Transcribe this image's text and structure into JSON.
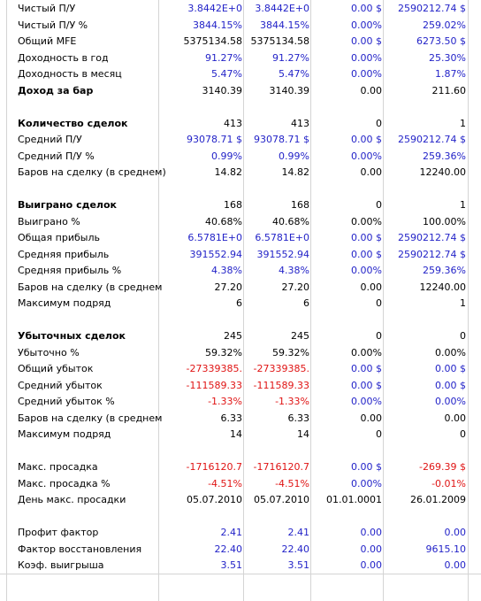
{
  "colors": {
    "blue": "#2323c8",
    "red": "#e01414",
    "black": "#000000",
    "grid": "#d4d4d4"
  },
  "rows": [
    {
      "label": "Чистый П/У",
      "bold": false,
      "values": [
        {
          "t": "3.8442E+0",
          "c": "blue"
        },
        {
          "t": "3.8442E+0",
          "c": "blue"
        },
        {
          "t": "0.00 $",
          "c": "blue"
        },
        {
          "t": "2590212.74 $",
          "c": "blue"
        }
      ]
    },
    {
      "label": "Чистый П/У %",
      "bold": false,
      "values": [
        {
          "t": "3844.15%",
          "c": "blue"
        },
        {
          "t": "3844.15%",
          "c": "blue"
        },
        {
          "t": "0.00%",
          "c": "blue"
        },
        {
          "t": "259.02%",
          "c": "blue"
        }
      ]
    },
    {
      "label": "Общий MFE",
      "bold": false,
      "values": [
        {
          "t": "5375134.58",
          "c": "black"
        },
        {
          "t": "5375134.58",
          "c": "black"
        },
        {
          "t": "0.00 $",
          "c": "blue"
        },
        {
          "t": "6273.50 $",
          "c": "blue"
        }
      ]
    },
    {
      "label": "Доходность в год",
      "bold": false,
      "values": [
        {
          "t": "91.27%",
          "c": "blue"
        },
        {
          "t": "91.27%",
          "c": "blue"
        },
        {
          "t": "0.00%",
          "c": "blue"
        },
        {
          "t": "25.30%",
          "c": "blue"
        }
      ]
    },
    {
      "label": "Доходность в месяц",
      "bold": false,
      "values": [
        {
          "t": "5.47%",
          "c": "blue"
        },
        {
          "t": "5.47%",
          "c": "blue"
        },
        {
          "t": "0.00%",
          "c": "blue"
        },
        {
          "t": "1.87%",
          "c": "blue"
        }
      ]
    },
    {
      "label": "Доход за бар",
      "bold": true,
      "values": [
        {
          "t": "3140.39",
          "c": "black"
        },
        {
          "t": "3140.39",
          "c": "black"
        },
        {
          "t": "0.00",
          "c": "black"
        },
        {
          "t": "211.60",
          "c": "black"
        }
      ]
    },
    null,
    {
      "label": "Количество сделок",
      "bold": true,
      "values": [
        {
          "t": "413",
          "c": "black"
        },
        {
          "t": "413",
          "c": "black"
        },
        {
          "t": "0",
          "c": "black"
        },
        {
          "t": "1",
          "c": "black"
        }
      ]
    },
    {
      "label": "Средний П/У",
      "bold": false,
      "values": [
        {
          "t": "93078.71 $",
          "c": "blue"
        },
        {
          "t": "93078.71 $",
          "c": "blue"
        },
        {
          "t": "0.00 $",
          "c": "blue"
        },
        {
          "t": "2590212.74 $",
          "c": "blue"
        }
      ]
    },
    {
      "label": "Средний П/У %",
      "bold": false,
      "values": [
        {
          "t": "0.99%",
          "c": "blue"
        },
        {
          "t": "0.99%",
          "c": "blue"
        },
        {
          "t": "0.00%",
          "c": "blue"
        },
        {
          "t": "259.36%",
          "c": "blue"
        }
      ]
    },
    {
      "label": "Баров на сделку (в среднем)",
      "bold": false,
      "values": [
        {
          "t": "14.82",
          "c": "black"
        },
        {
          "t": "14.82",
          "c": "black"
        },
        {
          "t": "0.00",
          "c": "black"
        },
        {
          "t": "12240.00",
          "c": "black"
        }
      ]
    },
    null,
    {
      "label": "Выиграно сделок",
      "bold": true,
      "values": [
        {
          "t": "168",
          "c": "black"
        },
        {
          "t": "168",
          "c": "black"
        },
        {
          "t": "0",
          "c": "black"
        },
        {
          "t": "1",
          "c": "black"
        }
      ]
    },
    {
      "label": "Выиграно %",
      "bold": false,
      "values": [
        {
          "t": "40.68%",
          "c": "black"
        },
        {
          "t": "40.68%",
          "c": "black"
        },
        {
          "t": "0.00%",
          "c": "black"
        },
        {
          "t": "100.00%",
          "c": "black"
        }
      ]
    },
    {
      "label": "Общая прибыль",
      "bold": false,
      "values": [
        {
          "t": "6.5781E+0",
          "c": "blue"
        },
        {
          "t": "6.5781E+0",
          "c": "blue"
        },
        {
          "t": "0.00 $",
          "c": "blue"
        },
        {
          "t": "2590212.74 $",
          "c": "blue"
        }
      ]
    },
    {
      "label": "Средняя прибыль",
      "bold": false,
      "values": [
        {
          "t": "391552.94",
          "c": "blue"
        },
        {
          "t": "391552.94",
          "c": "blue"
        },
        {
          "t": "0.00 $",
          "c": "blue"
        },
        {
          "t": "2590212.74 $",
          "c": "blue"
        }
      ]
    },
    {
      "label": "Средняя прибыль %",
      "bold": false,
      "values": [
        {
          "t": "4.38%",
          "c": "blue"
        },
        {
          "t": "4.38%",
          "c": "blue"
        },
        {
          "t": "0.00%",
          "c": "blue"
        },
        {
          "t": "259.36%",
          "c": "blue"
        }
      ]
    },
    {
      "label": "Баров на сделку (в среднем",
      "bold": false,
      "values": [
        {
          "t": "27.20",
          "c": "black"
        },
        {
          "t": "27.20",
          "c": "black"
        },
        {
          "t": "0.00",
          "c": "black"
        },
        {
          "t": "12240.00",
          "c": "black"
        }
      ]
    },
    {
      "label": "Максимум подряд",
      "bold": false,
      "values": [
        {
          "t": "6",
          "c": "black"
        },
        {
          "t": "6",
          "c": "black"
        },
        {
          "t": "0",
          "c": "black"
        },
        {
          "t": "1",
          "c": "black"
        }
      ]
    },
    null,
    {
      "label": "Убыточных сделок",
      "bold": true,
      "values": [
        {
          "t": "245",
          "c": "black"
        },
        {
          "t": "245",
          "c": "black"
        },
        {
          "t": "0",
          "c": "black"
        },
        {
          "t": "0",
          "c": "black"
        }
      ]
    },
    {
      "label": "Убыточно %",
      "bold": false,
      "values": [
        {
          "t": "59.32%",
          "c": "black"
        },
        {
          "t": "59.32%",
          "c": "black"
        },
        {
          "t": "0.00%",
          "c": "black"
        },
        {
          "t": "0.00%",
          "c": "black"
        }
      ]
    },
    {
      "label": "Общий убыток",
      "bold": false,
      "values": [
        {
          "t": "-27339385.",
          "c": "red"
        },
        {
          "t": "-27339385.",
          "c": "red"
        },
        {
          "t": "0.00 $",
          "c": "blue"
        },
        {
          "t": "0.00 $",
          "c": "blue"
        }
      ]
    },
    {
      "label": "Средний убыток",
      "bold": false,
      "values": [
        {
          "t": "-111589.33",
          "c": "red"
        },
        {
          "t": "-111589.33",
          "c": "red"
        },
        {
          "t": "0.00 $",
          "c": "blue"
        },
        {
          "t": "0.00 $",
          "c": "blue"
        }
      ]
    },
    {
      "label": "Средний убыток %",
      "bold": false,
      "values": [
        {
          "t": "-1.33%",
          "c": "red"
        },
        {
          "t": "-1.33%",
          "c": "red"
        },
        {
          "t": "0.00%",
          "c": "blue"
        },
        {
          "t": "0.00%",
          "c": "blue"
        }
      ]
    },
    {
      "label": "Баров на сделку (в среднем",
      "bold": false,
      "values": [
        {
          "t": "6.33",
          "c": "black"
        },
        {
          "t": "6.33",
          "c": "black"
        },
        {
          "t": "0.00",
          "c": "black"
        },
        {
          "t": "0.00",
          "c": "black"
        }
      ]
    },
    {
      "label": "Максимум подряд",
      "bold": false,
      "values": [
        {
          "t": "14",
          "c": "black"
        },
        {
          "t": "14",
          "c": "black"
        },
        {
          "t": "0",
          "c": "black"
        },
        {
          "t": "0",
          "c": "black"
        }
      ]
    },
    null,
    {
      "label": "Макс. просадка",
      "bold": false,
      "values": [
        {
          "t": "-1716120.7",
          "c": "red"
        },
        {
          "t": "-1716120.7",
          "c": "red"
        },
        {
          "t": "0.00 $",
          "c": "blue"
        },
        {
          "t": "-269.39 $",
          "c": "red"
        }
      ]
    },
    {
      "label": "Макс. просадка %",
      "bold": false,
      "values": [
        {
          "t": "-4.51%",
          "c": "red"
        },
        {
          "t": "-4.51%",
          "c": "red"
        },
        {
          "t": "0.00%",
          "c": "blue"
        },
        {
          "t": "-0.01%",
          "c": "red"
        }
      ]
    },
    {
      "label": "День макс. просадки",
      "bold": false,
      "values": [
        {
          "t": "05.07.2010",
          "c": "black"
        },
        {
          "t": "05.07.2010",
          "c": "black"
        },
        {
          "t": "01.01.0001",
          "c": "black"
        },
        {
          "t": "26.01.2009",
          "c": "black"
        }
      ]
    },
    null,
    {
      "label": "Профит фактор",
      "bold": false,
      "values": [
        {
          "t": "2.41",
          "c": "blue"
        },
        {
          "t": "2.41",
          "c": "blue"
        },
        {
          "t": "0.00",
          "c": "blue"
        },
        {
          "t": "0.00",
          "c": "blue"
        }
      ]
    },
    {
      "label": "Фактор восстановления",
      "bold": false,
      "values": [
        {
          "t": "22.40",
          "c": "blue"
        },
        {
          "t": "22.40",
          "c": "blue"
        },
        {
          "t": "0.00",
          "c": "blue"
        },
        {
          "t": "9615.10",
          "c": "blue"
        }
      ]
    },
    {
      "label": "Коэф. выигрыша",
      "bold": false,
      "values": [
        {
          "t": "3.51",
          "c": "blue"
        },
        {
          "t": "3.51",
          "c": "blue"
        },
        {
          "t": "0.00",
          "c": "blue"
        },
        {
          "t": "0.00",
          "c": "blue"
        }
      ]
    }
  ]
}
